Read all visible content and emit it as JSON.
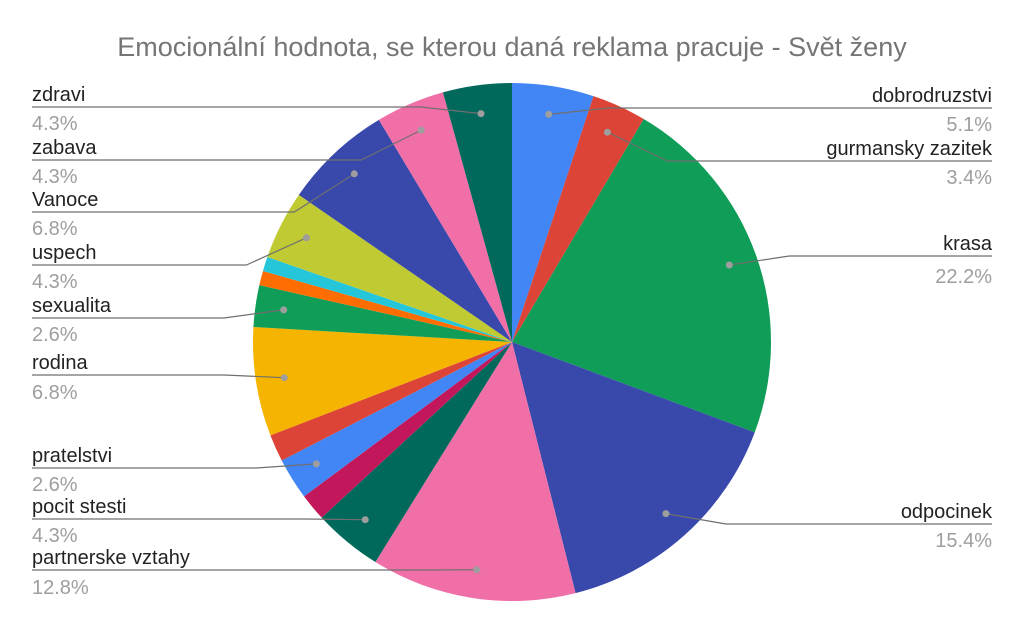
{
  "chart_data": {
    "type": "pie",
    "title": "Emocionální hodnota, se kterou daná reklama pracuje - Svět ženy",
    "start_angle_deg": 0,
    "direction": "clockwise",
    "legend": "labels-with-leader-lines",
    "slices": [
      {
        "label": "dobrodruzstvi",
        "pct_label": "5.1%",
        "value": 5.1,
        "color": "#4285f4"
      },
      {
        "label": "gurmansky zazitek",
        "pct_label": "3.4%",
        "value": 3.4,
        "color": "#db4437"
      },
      {
        "label": "krasa",
        "pct_label": "22.2%",
        "value": 22.2,
        "color": "#0f9d58"
      },
      {
        "label": "odpocinek",
        "pct_label": "15.4%",
        "value": 15.4,
        "color": "#3949ab"
      },
      {
        "label": "partnerske vztahy",
        "pct_label": "12.8%",
        "value": 12.8,
        "color": "#f06fa6"
      },
      {
        "label": "pocit stesti",
        "pct_label": "4.3%",
        "value": 4.3,
        "color": "#00695c"
      },
      {
        "label": "",
        "pct_label": "",
        "value": 1.7,
        "color": "#c2185b"
      },
      {
        "label": "pratelstvi",
        "pct_label": "2.6%",
        "value": 2.6,
        "color": "#4285f4"
      },
      {
        "label": "",
        "pct_label": "",
        "value": 1.7,
        "color": "#db4437"
      },
      {
        "label": "rodina",
        "pct_label": "6.8%",
        "value": 6.8,
        "color": "#f4b400"
      },
      {
        "label": "sexualita",
        "pct_label": "2.6%",
        "value": 2.6,
        "color": "#0f9d58"
      },
      {
        "label": "",
        "pct_label": "",
        "value": 0.9,
        "color": "#ff6d00"
      },
      {
        "label": "",
        "pct_label": "",
        "value": 0.9,
        "color": "#26c6da"
      },
      {
        "label": "uspech",
        "pct_label": "4.3%",
        "value": 4.3,
        "color": "#c0ca33"
      },
      {
        "label": "Vanoce",
        "pct_label": "6.8%",
        "value": 6.8,
        "color": "#3949ab"
      },
      {
        "label": "zabava",
        "pct_label": "4.3%",
        "value": 4.3,
        "color": "#f06fa6"
      },
      {
        "label": "zdravi",
        "pct_label": "4.3%",
        "value": 4.3,
        "color": "#00695c"
      }
    ]
  }
}
